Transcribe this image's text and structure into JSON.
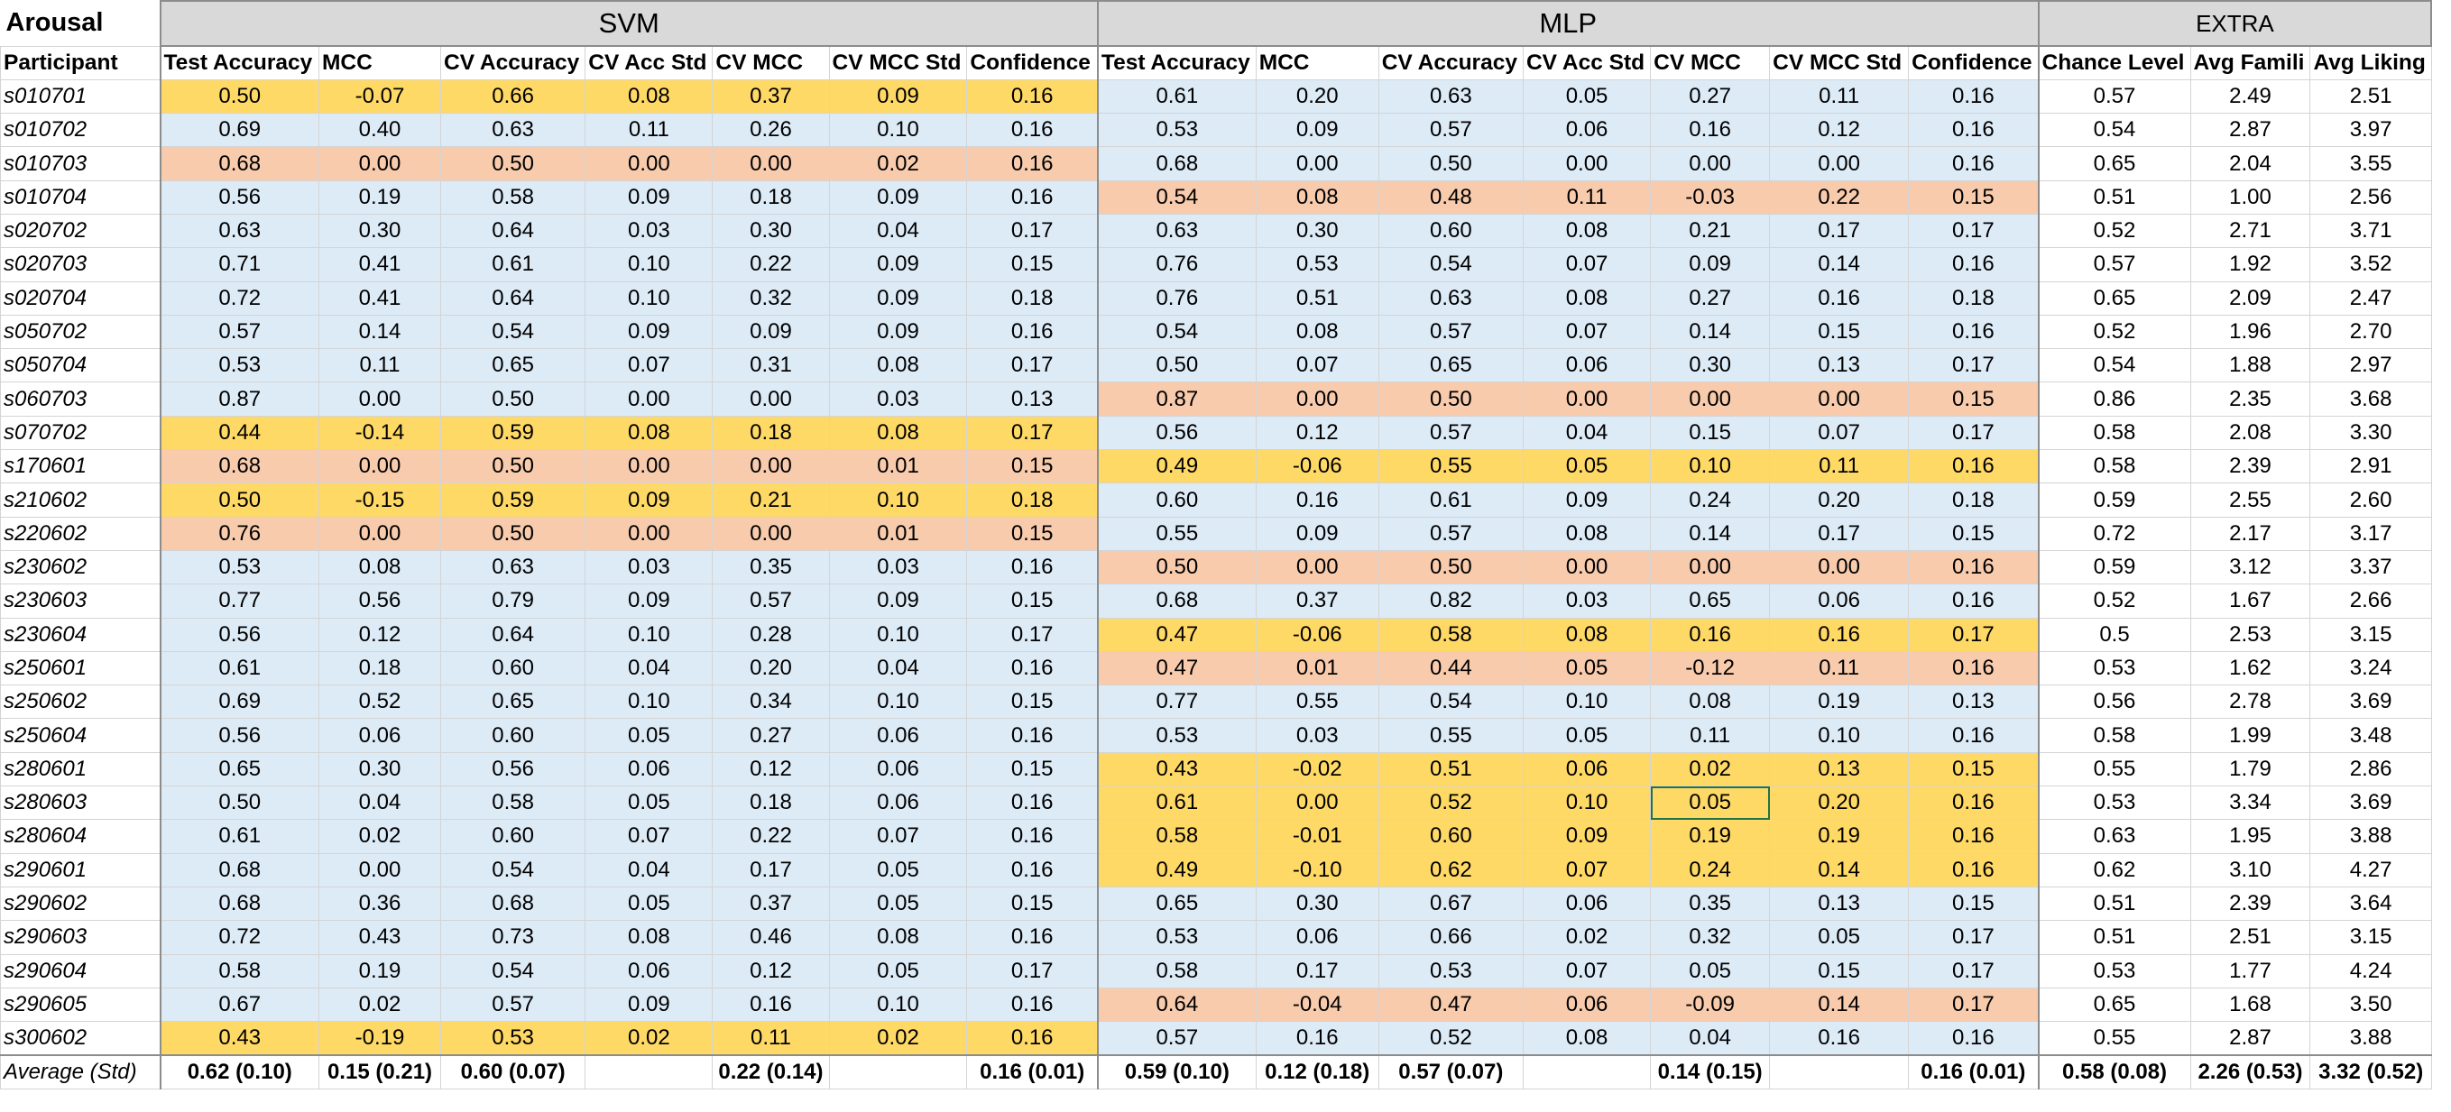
{
  "title": "Arousal",
  "groups": {
    "svm": "SVM",
    "mlp": "MLP",
    "extra": "EXTRA"
  },
  "colors": {
    "yellow": "#ffd966",
    "orange": "#f8cbad",
    "blue": "#ddebf7",
    "header_gray": "#d9d9d9",
    "selection": "#217346"
  },
  "headers": [
    "Participant",
    "Test Accuracy",
    "MCC",
    "CV Accuracy",
    "CV Acc Std",
    "CV MCC",
    "CV MCC Std",
    "Confidence",
    "Test Accuracy",
    "MCC",
    "CV Accuracy",
    "CV Acc Std",
    "CV MCC",
    "CV MCC Std",
    "Confidence",
    "Chance Level",
    "Avg Famili",
    "Avg Liking"
  ],
  "rows": [
    {
      "id": "s010701",
      "svm": [
        "0.50",
        "-0.07",
        "0.66",
        "0.08",
        "0.37",
        "0.09",
        "0.16"
      ],
      "mlp": [
        "0.61",
        "0.20",
        "0.63",
        "0.05",
        "0.27",
        "0.11",
        "0.16"
      ],
      "extra": [
        "0.57",
        "2.49",
        "2.51"
      ],
      "svm_hl": "y",
      "mlp_hl": "b"
    },
    {
      "id": "s010702",
      "svm": [
        "0.69",
        "0.40",
        "0.63",
        "0.11",
        "0.26",
        "0.10",
        "0.16"
      ],
      "mlp": [
        "0.53",
        "0.09",
        "0.57",
        "0.06",
        "0.16",
        "0.12",
        "0.16"
      ],
      "extra": [
        "0.54",
        "2.87",
        "3.97"
      ],
      "svm_hl": "b",
      "mlp_hl": "b"
    },
    {
      "id": "s010703",
      "svm": [
        "0.68",
        "0.00",
        "0.50",
        "0.00",
        "0.00",
        "0.02",
        "0.16"
      ],
      "mlp": [
        "0.68",
        "0.00",
        "0.50",
        "0.00",
        "0.00",
        "0.00",
        "0.16"
      ],
      "extra": [
        "0.65",
        "2.04",
        "3.55"
      ],
      "svm_hl": "o",
      "mlp_hl": "b"
    },
    {
      "id": "s010704",
      "svm": [
        "0.56",
        "0.19",
        "0.58",
        "0.09",
        "0.18",
        "0.09",
        "0.16"
      ],
      "mlp": [
        "0.54",
        "0.08",
        "0.48",
        "0.11",
        "-0.03",
        "0.22",
        "0.15"
      ],
      "extra": [
        "0.51",
        "1.00",
        "2.56"
      ],
      "svm_hl": "b",
      "mlp_hl": "o"
    },
    {
      "id": "s020702",
      "svm": [
        "0.63",
        "0.30",
        "0.64",
        "0.03",
        "0.30",
        "0.04",
        "0.17"
      ],
      "mlp": [
        "0.63",
        "0.30",
        "0.60",
        "0.08",
        "0.21",
        "0.17",
        "0.17"
      ],
      "extra": [
        "0.52",
        "2.71",
        "3.71"
      ],
      "svm_hl": "b",
      "mlp_hl": "b"
    },
    {
      "id": "s020703",
      "svm": [
        "0.71",
        "0.41",
        "0.61",
        "0.10",
        "0.22",
        "0.09",
        "0.15"
      ],
      "mlp": [
        "0.76",
        "0.53",
        "0.54",
        "0.07",
        "0.09",
        "0.14",
        "0.16"
      ],
      "extra": [
        "0.57",
        "1.92",
        "3.52"
      ],
      "svm_hl": "b",
      "mlp_hl": "b"
    },
    {
      "id": "s020704",
      "svm": [
        "0.72",
        "0.41",
        "0.64",
        "0.10",
        "0.32",
        "0.09",
        "0.18"
      ],
      "mlp": [
        "0.76",
        "0.51",
        "0.63",
        "0.08",
        "0.27",
        "0.16",
        "0.18"
      ],
      "extra": [
        "0.65",
        "2.09",
        "2.47"
      ],
      "svm_hl": "b",
      "mlp_hl": "b"
    },
    {
      "id": "s050702",
      "svm": [
        "0.57",
        "0.14",
        "0.54",
        "0.09",
        "0.09",
        "0.09",
        "0.16"
      ],
      "mlp": [
        "0.54",
        "0.08",
        "0.57",
        "0.07",
        "0.14",
        "0.15",
        "0.16"
      ],
      "extra": [
        "0.52",
        "1.96",
        "2.70"
      ],
      "svm_hl": "b",
      "mlp_hl": "b"
    },
    {
      "id": "s050704",
      "svm": [
        "0.53",
        "0.11",
        "0.65",
        "0.07",
        "0.31",
        "0.08",
        "0.17"
      ],
      "mlp": [
        "0.50",
        "0.07",
        "0.65",
        "0.06",
        "0.30",
        "0.13",
        "0.17"
      ],
      "extra": [
        "0.54",
        "1.88",
        "2.97"
      ],
      "svm_hl": "b",
      "mlp_hl": "b"
    },
    {
      "id": "s060703",
      "svm": [
        "0.87",
        "0.00",
        "0.50",
        "0.00",
        "0.00",
        "0.03",
        "0.13"
      ],
      "mlp": [
        "0.87",
        "0.00",
        "0.50",
        "0.00",
        "0.00",
        "0.00",
        "0.15"
      ],
      "extra": [
        "0.86",
        "2.35",
        "3.68"
      ],
      "svm_hl": "b",
      "mlp_hl": "o"
    },
    {
      "id": "s070702",
      "svm": [
        "0.44",
        "-0.14",
        "0.59",
        "0.08",
        "0.18",
        "0.08",
        "0.17"
      ],
      "mlp": [
        "0.56",
        "0.12",
        "0.57",
        "0.04",
        "0.15",
        "0.07",
        "0.17"
      ],
      "extra": [
        "0.58",
        "2.08",
        "3.30"
      ],
      "svm_hl": "y",
      "mlp_hl": "b"
    },
    {
      "id": "s170601",
      "svm": [
        "0.68",
        "0.00",
        "0.50",
        "0.00",
        "0.00",
        "0.01",
        "0.15"
      ],
      "mlp": [
        "0.49",
        "-0.06",
        "0.55",
        "0.05",
        "0.10",
        "0.11",
        "0.16"
      ],
      "extra": [
        "0.58",
        "2.39",
        "2.91"
      ],
      "svm_hl": "o",
      "mlp_hl": "y"
    },
    {
      "id": "s210602",
      "svm": [
        "0.50",
        "-0.15",
        "0.59",
        "0.09",
        "0.21",
        "0.10",
        "0.18"
      ],
      "mlp": [
        "0.60",
        "0.16",
        "0.61",
        "0.09",
        "0.24",
        "0.20",
        "0.18"
      ],
      "extra": [
        "0.59",
        "2.55",
        "2.60"
      ],
      "svm_hl": "y",
      "mlp_hl": "b"
    },
    {
      "id": "s220602",
      "svm": [
        "0.76",
        "0.00",
        "0.50",
        "0.00",
        "0.00",
        "0.01",
        "0.15"
      ],
      "mlp": [
        "0.55",
        "0.09",
        "0.57",
        "0.08",
        "0.14",
        "0.17",
        "0.15"
      ],
      "extra": [
        "0.72",
        "2.17",
        "3.17"
      ],
      "svm_hl": "o",
      "mlp_hl": "b"
    },
    {
      "id": "s230602",
      "svm": [
        "0.53",
        "0.08",
        "0.63",
        "0.03",
        "0.35",
        "0.03",
        "0.16"
      ],
      "mlp": [
        "0.50",
        "0.00",
        "0.50",
        "0.00",
        "0.00",
        "0.00",
        "0.16"
      ],
      "extra": [
        "0.59",
        "3.12",
        "3.37"
      ],
      "svm_hl": "b",
      "mlp_hl": "o"
    },
    {
      "id": "s230603",
      "svm": [
        "0.77",
        "0.56",
        "0.79",
        "0.09",
        "0.57",
        "0.09",
        "0.15"
      ],
      "mlp": [
        "0.68",
        "0.37",
        "0.82",
        "0.03",
        "0.65",
        "0.06",
        "0.16"
      ],
      "extra": [
        "0.52",
        "1.67",
        "2.66"
      ],
      "svm_hl": "b",
      "mlp_hl": "b"
    },
    {
      "id": "s230604",
      "svm": [
        "0.56",
        "0.12",
        "0.64",
        "0.10",
        "0.28",
        "0.10",
        "0.17"
      ],
      "mlp": [
        "0.47",
        "-0.06",
        "0.58",
        "0.08",
        "0.16",
        "0.16",
        "0.17"
      ],
      "extra": [
        "0.5",
        "2.53",
        "3.15"
      ],
      "svm_hl": "b",
      "mlp_hl": "y"
    },
    {
      "id": "s250601",
      "svm": [
        "0.61",
        "0.18",
        "0.60",
        "0.04",
        "0.20",
        "0.04",
        "0.16"
      ],
      "mlp": [
        "0.47",
        "0.01",
        "0.44",
        "0.05",
        "-0.12",
        "0.11",
        "0.16"
      ],
      "extra": [
        "0.53",
        "1.62",
        "3.24"
      ],
      "svm_hl": "b",
      "mlp_hl": "o"
    },
    {
      "id": "s250602",
      "svm": [
        "0.69",
        "0.52",
        "0.65",
        "0.10",
        "0.34",
        "0.10",
        "0.15"
      ],
      "mlp": [
        "0.77",
        "0.55",
        "0.54",
        "0.10",
        "0.08",
        "0.19",
        "0.13"
      ],
      "extra": [
        "0.56",
        "2.78",
        "3.69"
      ],
      "svm_hl": "b",
      "mlp_hl": "b"
    },
    {
      "id": "s250604",
      "svm": [
        "0.56",
        "0.06",
        "0.60",
        "0.05",
        "0.27",
        "0.06",
        "0.16"
      ],
      "mlp": [
        "0.53",
        "0.03",
        "0.55",
        "0.05",
        "0.11",
        "0.10",
        "0.16"
      ],
      "extra": [
        "0.58",
        "1.99",
        "3.48"
      ],
      "svm_hl": "b",
      "mlp_hl": "b"
    },
    {
      "id": "s280601",
      "svm": [
        "0.65",
        "0.30",
        "0.56",
        "0.06",
        "0.12",
        "0.06",
        "0.15"
      ],
      "mlp": [
        "0.43",
        "-0.02",
        "0.51",
        "0.06",
        "0.02",
        "0.13",
        "0.15"
      ],
      "extra": [
        "0.55",
        "1.79",
        "2.86"
      ],
      "svm_hl": "b",
      "mlp_hl": "y"
    },
    {
      "id": "s280603",
      "svm": [
        "0.50",
        "0.04",
        "0.58",
        "0.05",
        "0.18",
        "0.06",
        "0.16"
      ],
      "mlp": [
        "0.61",
        "0.00",
        "0.52",
        "0.10",
        "0.05",
        "0.20",
        "0.16"
      ],
      "extra": [
        "0.53",
        "3.34",
        "3.69"
      ],
      "svm_hl": "b",
      "mlp_hl": "y"
    },
    {
      "id": "s280604",
      "svm": [
        "0.61",
        "0.02",
        "0.60",
        "0.07",
        "0.22",
        "0.07",
        "0.16"
      ],
      "mlp": [
        "0.58",
        "-0.01",
        "0.60",
        "0.09",
        "0.19",
        "0.19",
        "0.16"
      ],
      "extra": [
        "0.63",
        "1.95",
        "3.88"
      ],
      "svm_hl": "b",
      "mlp_hl": "y"
    },
    {
      "id": "s290601",
      "svm": [
        "0.68",
        "0.00",
        "0.54",
        "0.04",
        "0.17",
        "0.05",
        "0.16"
      ],
      "mlp": [
        "0.49",
        "-0.10",
        "0.62",
        "0.07",
        "0.24",
        "0.14",
        "0.16"
      ],
      "extra": [
        "0.62",
        "3.10",
        "4.27"
      ],
      "svm_hl": "b",
      "mlp_hl": "y"
    },
    {
      "id": "s290602",
      "svm": [
        "0.68",
        "0.36",
        "0.68",
        "0.05",
        "0.37",
        "0.05",
        "0.15"
      ],
      "mlp": [
        "0.65",
        "0.30",
        "0.67",
        "0.06",
        "0.35",
        "0.13",
        "0.15"
      ],
      "extra": [
        "0.51",
        "2.39",
        "3.64"
      ],
      "svm_hl": "b",
      "mlp_hl": "b"
    },
    {
      "id": "s290603",
      "svm": [
        "0.72",
        "0.43",
        "0.73",
        "0.08",
        "0.46",
        "0.08",
        "0.16"
      ],
      "mlp": [
        "0.53",
        "0.06",
        "0.66",
        "0.02",
        "0.32",
        "0.05",
        "0.17"
      ],
      "extra": [
        "0.51",
        "2.51",
        "3.15"
      ],
      "svm_hl": "b",
      "mlp_hl": "b"
    },
    {
      "id": "s290604",
      "svm": [
        "0.58",
        "0.19",
        "0.54",
        "0.06",
        "0.12",
        "0.05",
        "0.17"
      ],
      "mlp": [
        "0.58",
        "0.17",
        "0.53",
        "0.07",
        "0.05",
        "0.15",
        "0.17"
      ],
      "extra": [
        "0.53",
        "1.77",
        "4.24"
      ],
      "svm_hl": "b",
      "mlp_hl": "b"
    },
    {
      "id": "s290605",
      "svm": [
        "0.67",
        "0.02",
        "0.57",
        "0.09",
        "0.16",
        "0.10",
        "0.16"
      ],
      "mlp": [
        "0.64",
        "-0.04",
        "0.47",
        "0.06",
        "-0.09",
        "0.14",
        "0.17"
      ],
      "extra": [
        "0.65",
        "1.68",
        "3.50"
      ],
      "svm_hl": "b",
      "mlp_hl": "o"
    },
    {
      "id": "s300602",
      "svm": [
        "0.43",
        "-0.19",
        "0.53",
        "0.02",
        "0.11",
        "0.02",
        "0.16"
      ],
      "mlp": [
        "0.57",
        "0.16",
        "0.52",
        "0.08",
        "0.04",
        "0.16",
        "0.16"
      ],
      "extra": [
        "0.55",
        "2.87",
        "3.88"
      ],
      "svm_hl": "y",
      "mlp_hl": "b"
    }
  ],
  "average": {
    "label": "Average (Std)",
    "svm": [
      "0.62 (0.10)",
      "0.15 (0.21)",
      "0.60 (0.07)",
      "",
      "0.22 (0.14)",
      "",
      "0.16 (0.01)"
    ],
    "mlp": [
      "0.59 (0.10)",
      "0.12 (0.18)",
      "0.57 (0.07)",
      "",
      "0.14 (0.15)",
      "",
      "0.16 (0.01)"
    ],
    "extra": [
      "0.58 (0.08)",
      "2.26 (0.53)",
      "3.32 (0.52)"
    ]
  }
}
